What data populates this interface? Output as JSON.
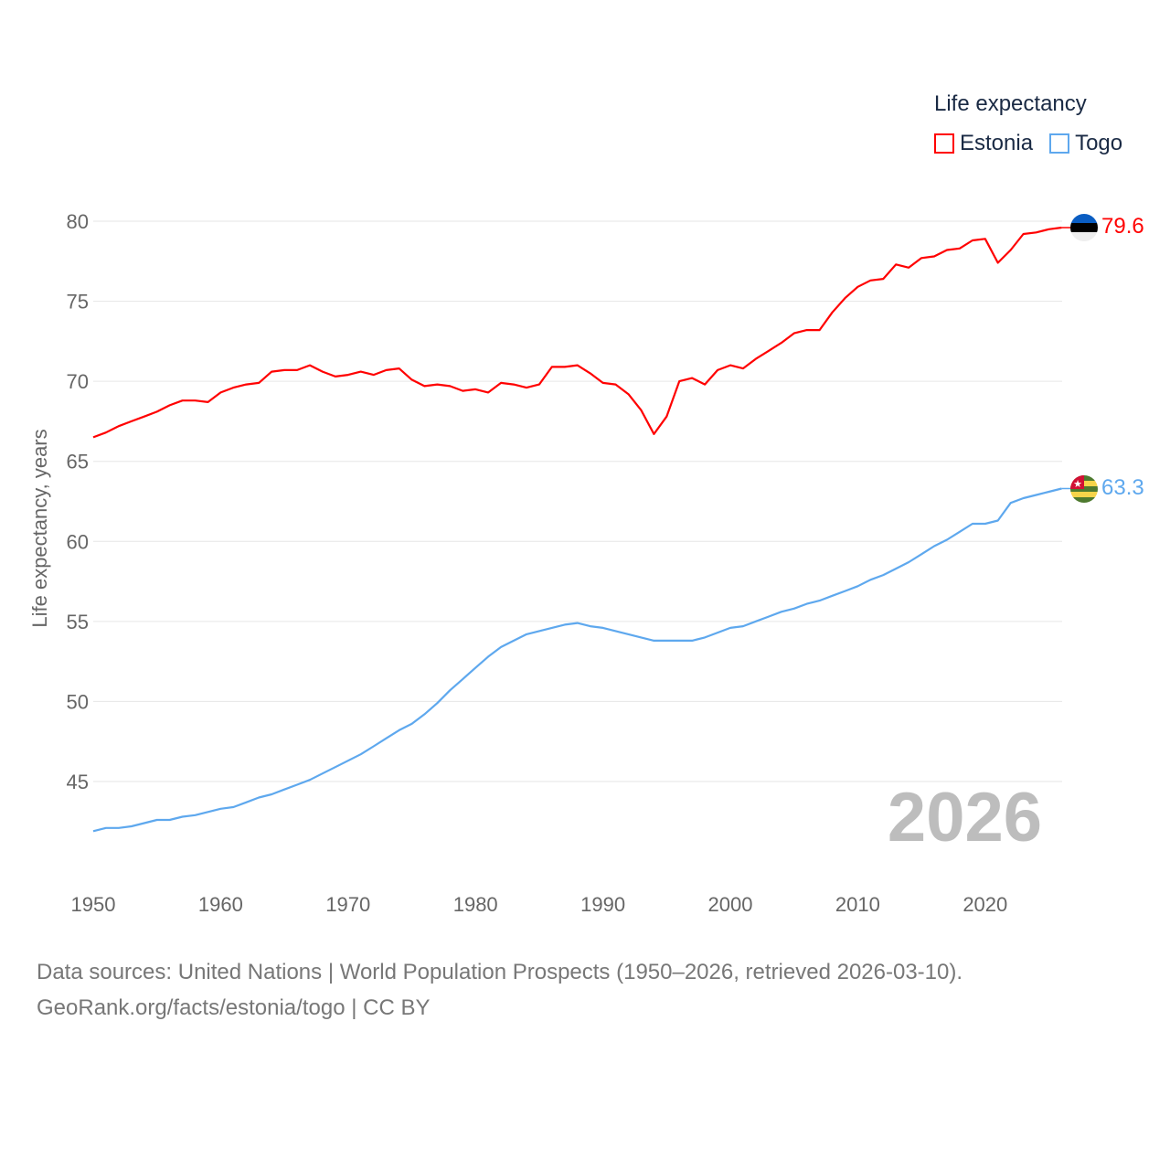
{
  "chart_data": {
    "type": "line",
    "title": "Life expectancy",
    "xlabel": "",
    "ylabel": "Life expectancy, years",
    "xlim": [
      1950,
      2026
    ],
    "ylim": [
      41,
      82
    ],
    "x_ticks": [
      "1950",
      "1960",
      "1970",
      "1980",
      "1990",
      "2000",
      "2010",
      "2020"
    ],
    "y_ticks": [
      "45",
      "50",
      "55",
      "60",
      "65",
      "70",
      "75",
      "80"
    ],
    "grid": true,
    "legend_placement": "top-right",
    "year_label": "2026",
    "x": [
      1950,
      1951,
      1952,
      1953,
      1954,
      1955,
      1956,
      1957,
      1958,
      1959,
      1960,
      1961,
      1962,
      1963,
      1964,
      1965,
      1966,
      1967,
      1968,
      1969,
      1970,
      1971,
      1972,
      1973,
      1974,
      1975,
      1976,
      1977,
      1978,
      1979,
      1980,
      1981,
      1982,
      1983,
      1984,
      1985,
      1986,
      1987,
      1988,
      1989,
      1990,
      1991,
      1992,
      1993,
      1994,
      1995,
      1996,
      1997,
      1998,
      1999,
      2000,
      2001,
      2002,
      2003,
      2004,
      2005,
      2006,
      2007,
      2008,
      2009,
      2010,
      2011,
      2012,
      2013,
      2014,
      2015,
      2016,
      2017,
      2018,
      2019,
      2020,
      2021,
      2022,
      2023,
      2024,
      2025,
      2026
    ],
    "series": [
      {
        "name": "Estonia",
        "color": "#ff0000",
        "end_label": "79.6",
        "values": [
          66.5,
          66.8,
          67.2,
          67.5,
          67.8,
          68.1,
          68.5,
          68.8,
          68.8,
          68.7,
          69.3,
          69.6,
          69.8,
          69.9,
          70.6,
          70.7,
          70.7,
          71.0,
          70.6,
          70.3,
          70.4,
          70.6,
          70.4,
          70.7,
          70.8,
          70.1,
          69.7,
          69.8,
          69.7,
          69.4,
          69.5,
          69.3,
          69.9,
          69.8,
          69.6,
          69.8,
          70.9,
          70.9,
          71.0,
          70.5,
          69.9,
          69.8,
          69.2,
          68.2,
          66.7,
          67.8,
          70.0,
          70.2,
          69.8,
          70.7,
          71.0,
          70.8,
          71.4,
          71.9,
          72.4,
          73.0,
          73.2,
          73.2,
          74.3,
          75.2,
          75.9,
          76.3,
          76.4,
          77.3,
          77.1,
          77.7,
          77.8,
          78.2,
          78.3,
          78.8,
          78.9,
          77.4,
          78.2,
          79.2,
          79.3,
          79.5,
          79.6
        ]
      },
      {
        "name": "Togo",
        "color": "#5ea8ee",
        "end_label": "63.3",
        "values": [
          41.9,
          42.1,
          42.1,
          42.2,
          42.4,
          42.6,
          42.6,
          42.8,
          42.9,
          43.1,
          43.3,
          43.4,
          43.7,
          44.0,
          44.2,
          44.5,
          44.8,
          45.1,
          45.5,
          45.9,
          46.3,
          46.7,
          47.2,
          47.7,
          48.2,
          48.6,
          49.2,
          49.9,
          50.7,
          51.4,
          52.1,
          52.8,
          53.4,
          53.8,
          54.2,
          54.4,
          54.6,
          54.8,
          54.9,
          54.7,
          54.6,
          54.4,
          54.2,
          54.0,
          53.8,
          53.8,
          53.8,
          53.8,
          54.0,
          54.3,
          54.6,
          54.7,
          55.0,
          55.3,
          55.6,
          55.8,
          56.1,
          56.3,
          56.6,
          56.9,
          57.2,
          57.6,
          57.9,
          58.3,
          58.7,
          59.2,
          59.7,
          60.1,
          60.6,
          61.1,
          61.1,
          61.3,
          62.4,
          62.7,
          62.9,
          63.1,
          63.3
        ]
      }
    ]
  },
  "source": {
    "line1": "Data sources: United Nations | World Population Prospects (1950–2026, retrieved 2026-03-10).",
    "line2": "GeoRank.org/facts/estonia/togo | CC BY"
  }
}
